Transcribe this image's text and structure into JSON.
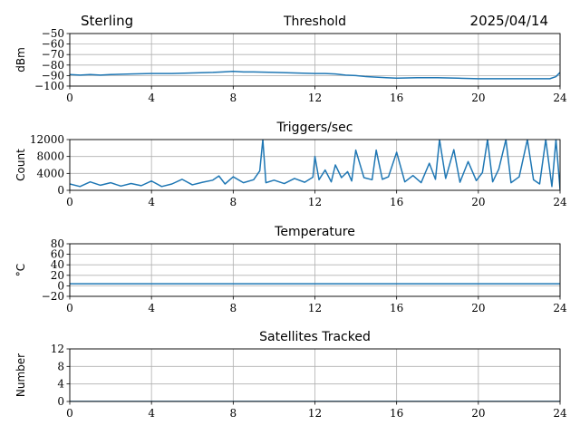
{
  "header": {
    "station": "Sterling",
    "date": "2025/04/14"
  },
  "colors": {
    "series": "#1f77b4",
    "grid": "#b0b0b0",
    "axis": "#000000"
  },
  "chart_data": [
    {
      "type": "line",
      "title": "Threshold",
      "ylabel": "dBm",
      "xlim": [
        0,
        24
      ],
      "ylim": [
        -100,
        -50
      ],
      "xticks": [
        0,
        4,
        8,
        12,
        16,
        20,
        24
      ],
      "xtick_labels": [
        "0",
        "4",
        "8",
        "12",
        "16",
        "20",
        "24"
      ],
      "yticks": [
        -100,
        -90,
        -80,
        -70,
        -60,
        -50
      ],
      "ytick_labels": [
        "−100",
        "−90",
        "−80",
        "−70",
        "−60",
        "−50"
      ],
      "grid": true,
      "series": [
        {
          "x": [
            0,
            0.5,
            1,
            1.5,
            2,
            3,
            4,
            5,
            6,
            7,
            7.5,
            8,
            8.5,
            9,
            10,
            11,
            12,
            12.5,
            13,
            13.5,
            14,
            14.5,
            15,
            15.5,
            16,
            17,
            18,
            19,
            20,
            21,
            22,
            23,
            23.5,
            23.8,
            24
          ],
          "y": [
            -89,
            -89.5,
            -89,
            -89.5,
            -89,
            -88.5,
            -88,
            -88,
            -87.5,
            -87,
            -86.5,
            -86,
            -86.5,
            -86.5,
            -87,
            -87.5,
            -88,
            -88,
            -88.5,
            -89.5,
            -90,
            -91,
            -91.5,
            -92,
            -92.5,
            -92,
            -92,
            -92.5,
            -93,
            -93,
            -93,
            -93,
            -93,
            -91,
            -87
          ]
        }
      ]
    },
    {
      "type": "line",
      "title": "Triggers/sec",
      "ylabel": "Count",
      "xlim": [
        0,
        24
      ],
      "ylim": [
        0,
        12000
      ],
      "xticks": [
        0,
        4,
        8,
        12,
        16,
        20,
        24
      ],
      "xtick_labels": [
        "0",
        "4",
        "8",
        "12",
        "16",
        "20",
        "24"
      ],
      "yticks": [
        0,
        4000,
        8000,
        12000
      ],
      "ytick_labels": [
        "0",
        "4000",
        "8000",
        "12000"
      ],
      "grid": true,
      "series": [
        {
          "x": [
            0,
            0.5,
            1,
            1.5,
            2,
            2.5,
            3,
            3.5,
            4,
            4.5,
            5,
            5.5,
            6,
            6.5,
            7,
            7.3,
            7.6,
            8,
            8.5,
            9,
            9.3,
            9.45,
            9.6,
            10,
            10.5,
            11,
            11.5,
            11.9,
            12,
            12.2,
            12.5,
            12.8,
            13,
            13.3,
            13.6,
            13.8,
            14,
            14.4,
            14.8,
            15,
            15.3,
            15.6,
            16,
            16.4,
            16.8,
            17.2,
            17.6,
            17.9,
            18.1,
            18.4,
            18.8,
            19.1,
            19.5,
            19.9,
            20.2,
            20.45,
            20.7,
            21,
            21.35,
            21.6,
            22,
            22.4,
            22.7,
            23,
            23.3,
            23.6,
            23.8,
            24
          ],
          "y": [
            1500,
            900,
            2000,
            1200,
            1800,
            1000,
            1600,
            1100,
            2200,
            900,
            1500,
            2600,
            1300,
            1900,
            2400,
            3400,
            1500,
            3200,
            1800,
            2500,
            4600,
            12000,
            1800,
            2400,
            1600,
            2800,
            1900,
            3100,
            8000,
            2500,
            4800,
            2000,
            6000,
            3000,
            4400,
            2200,
            9500,
            3000,
            2500,
            9500,
            2600,
            3200,
            9000,
            2000,
            3500,
            1800,
            6400,
            2600,
            12000,
            2800,
            9600,
            1900,
            6800,
            2300,
            4200,
            12000,
            2000,
            5000,
            12000,
            1800,
            3200,
            12000,
            2500,
            1500,
            12000,
            900,
            12000,
            200
          ]
        }
      ]
    },
    {
      "type": "line",
      "title": "Temperature",
      "ylabel": "°C",
      "xlim": [
        0,
        24
      ],
      "ylim": [
        -20,
        80
      ],
      "xticks": [
        0,
        4,
        8,
        12,
        16,
        20,
        24
      ],
      "xtick_labels": [
        "0",
        "4",
        "8",
        "12",
        "16",
        "20",
        "24"
      ],
      "yticks": [
        -20,
        0,
        20,
        40,
        60,
        80
      ],
      "ytick_labels": [
        "−20",
        "0",
        "20",
        "40",
        "60",
        "80"
      ],
      "grid": true,
      "series": [
        {
          "x": [
            0,
            24
          ],
          "y": [
            4,
            4
          ]
        }
      ]
    },
    {
      "type": "line",
      "title": "Satellites Tracked",
      "ylabel": "Number",
      "xlim": [
        0,
        24
      ],
      "ylim": [
        0,
        12
      ],
      "xticks": [
        0,
        4,
        8,
        12,
        16,
        20,
        24
      ],
      "xtick_labels": [
        "0",
        "4",
        "8",
        "12",
        "16",
        "20",
        "24"
      ],
      "yticks": [
        0,
        4,
        8,
        12
      ],
      "ytick_labels": [
        "0",
        "4",
        "8",
        "12"
      ],
      "grid": true,
      "series": [
        {
          "x": [
            0,
            24
          ],
          "y": [
            0,
            0
          ]
        }
      ]
    }
  ]
}
